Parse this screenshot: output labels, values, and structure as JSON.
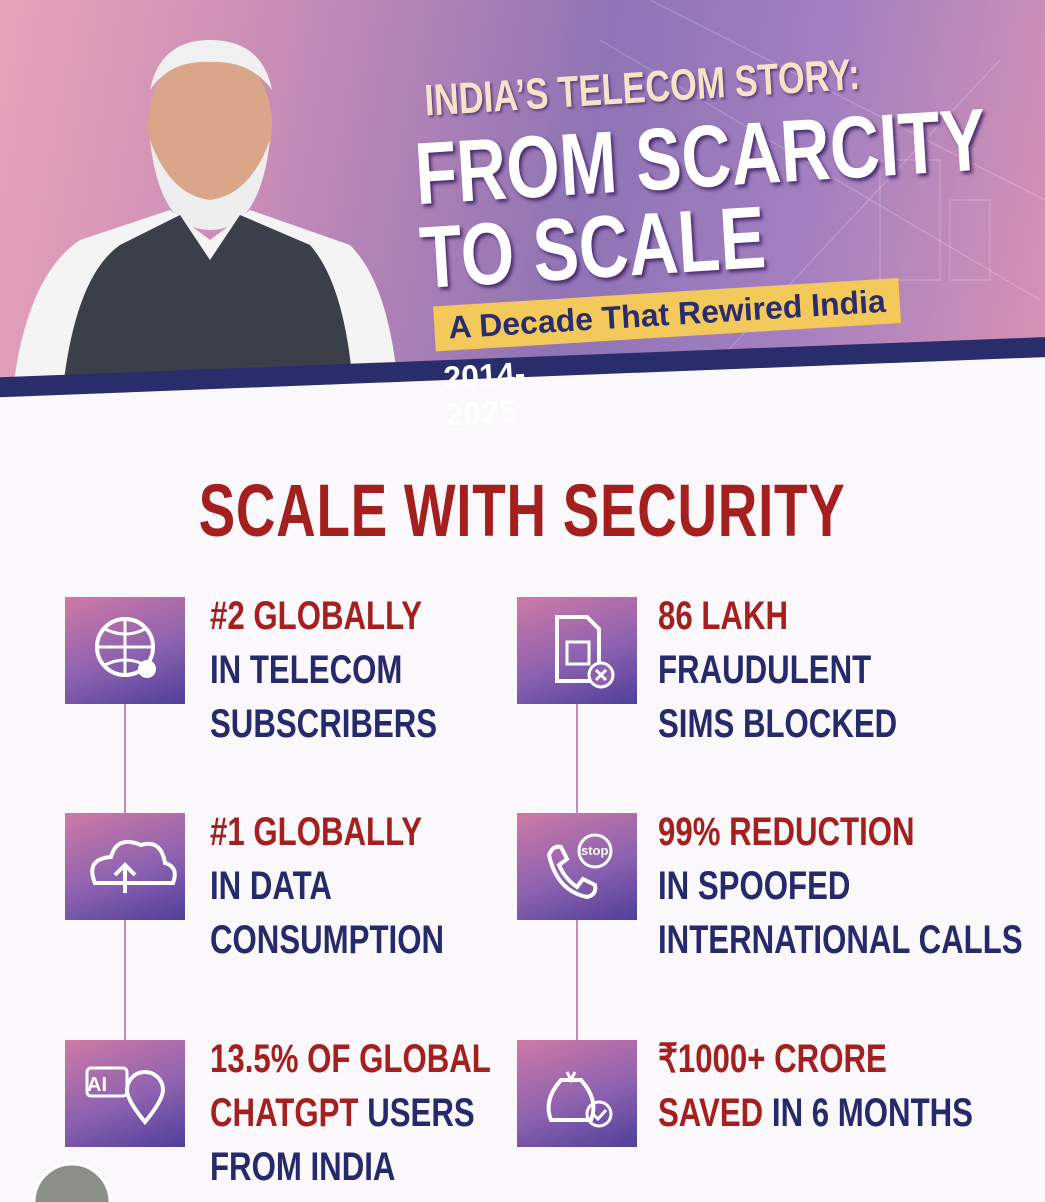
{
  "header": {
    "title_lines": [
      "INDIA’S TELECOM STORY:",
      "FROM SCARCITY",
      "TO SCALE"
    ],
    "tagline": "A Decade That Rewired India",
    "years": "2014-2025"
  },
  "section_title": "SCALE WITH SECURITY",
  "columns": [
    {
      "items": [
        {
          "lines": [
            [
              {
                "text": "#2 GLOBALLY",
                "accent": true
              }
            ],
            [
              {
                "text": "IN TELECOM",
                "accent": false
              }
            ],
            [
              {
                "text": "SUBSCRIBERS",
                "accent": false
              }
            ]
          ]
        },
        {
          "lines": [
            [
              {
                "text": "#1 GLOBALLY",
                "accent": true
              }
            ],
            [
              {
                "text": "IN DATA",
                "accent": false
              }
            ],
            [
              {
                "text": "CONSUMPTION",
                "accent": false
              }
            ]
          ]
        },
        {
          "icon_text": "AI",
          "lines": [
            [
              {
                "text": "13.5% OF GLOBAL",
                "accent": true
              }
            ],
            [
              {
                "text": "CHATGPT",
                "accent": true
              },
              {
                "text": "USERS",
                "accent": false
              }
            ],
            [
              {
                "text": "FROM INDIA",
                "accent": false
              }
            ]
          ]
        }
      ]
    },
    {
      "items": [
        {
          "lines": [
            [
              {
                "text": "86 LAKH",
                "accent": true
              }
            ],
            [
              {
                "text": "FRAUDULENT",
                "accent": false
              }
            ],
            [
              {
                "text": "SIMS BLOCKED",
                "accent": false
              }
            ]
          ]
        },
        {
          "icon_text": "stop",
          "lines": [
            [
              {
                "text": "99% REDUCTION",
                "accent": true
              }
            ],
            [
              {
                "text": "IN SPOOFED",
                "accent": false
              }
            ],
            [
              {
                "text": "INTERNATIONAL CALLS",
                "accent": false
              }
            ]
          ]
        },
        {
          "lines": [
            [
              {
                "text": "₹1000+ CRORE",
                "accent": true
              }
            ],
            [
              {
                "text": "SAVED",
                "accent": true
              },
              {
                "text": "IN 6 MONTHS",
                "accent": false
              }
            ]
          ]
        }
      ]
    }
  ]
}
